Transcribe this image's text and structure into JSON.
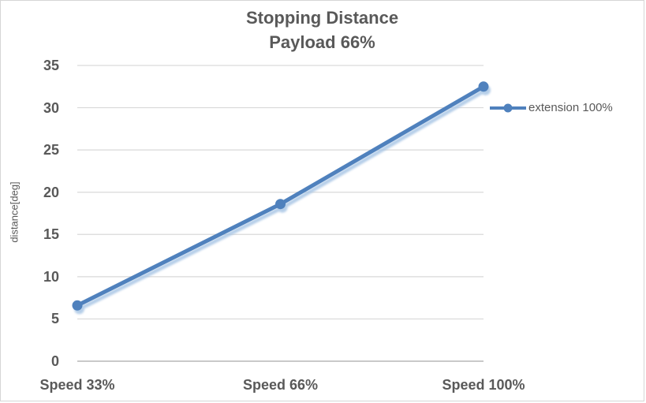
{
  "chart_data": {
    "type": "line",
    "title": "Stopping Distance Payload 66%",
    "title_lines": [
      "Stopping Distance",
      "Payload 66%"
    ],
    "categories": [
      "Speed 33%",
      "Speed 66%",
      "Speed 100%"
    ],
    "series": [
      {
        "name": "extension 100%",
        "values": [
          6.6,
          18.6,
          32.5
        ],
        "marker": "circle",
        "color": "#4F81BD"
      }
    ],
    "xlabel": "",
    "ylabel": "distance[deg]",
    "ylim": [
      0,
      35
    ],
    "ytick_step": 5,
    "yticks": [
      0,
      5,
      10,
      15,
      20,
      25,
      30,
      35
    ],
    "grid": true,
    "legend_position": "right",
    "colors": {
      "text": "#595959",
      "grid": "#D9D9D9",
      "axis_line": "#C9C9C9",
      "line_shadow": "#A9C6E5"
    }
  }
}
